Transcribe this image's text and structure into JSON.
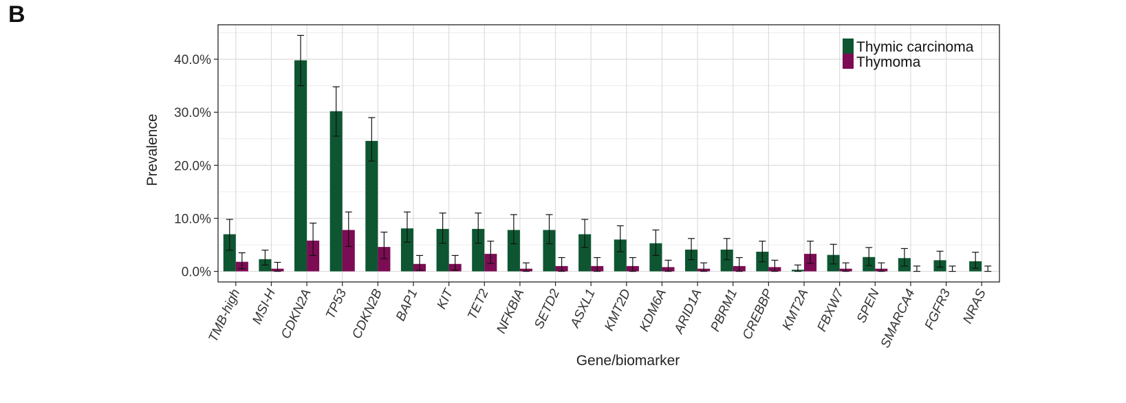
{
  "panel_label": "B",
  "chart_data": {
    "type": "bar",
    "xlabel": "Gene/biomarker",
    "ylabel": "Prevalence",
    "ylim": [
      -0.02,
      0.465
    ],
    "yticks": [
      0.0,
      0.1,
      0.2,
      0.3,
      0.4
    ],
    "ytick_labels": [
      "0.0%",
      "10.0%",
      "20.0%",
      "30.0%",
      "40.0%"
    ],
    "grid": true,
    "legend_position": "top-right",
    "categories": [
      "TMB-high",
      "MSI-H",
      "CDKN2A",
      "TP53",
      "CDKN2B",
      "BAP1",
      "KIT",
      "TET2",
      "NFKBIA",
      "SETD2",
      "ASXL1",
      "KMT2D",
      "KDM6A",
      "ARID1A",
      "PBRM1",
      "CREBBP",
      "KMT2A",
      "FBXW7",
      "SPEN",
      "SMARCA4",
      "FGFR3",
      "NRAS"
    ],
    "series": [
      {
        "name": "Thymic carcinoma",
        "color": "#0e5631",
        "values": [
          0.07,
          0.023,
          0.398,
          0.302,
          0.246,
          0.081,
          0.08,
          0.08,
          0.078,
          0.078,
          0.07,
          0.06,
          0.053,
          0.041,
          0.041,
          0.037,
          0.003,
          0.031,
          0.027,
          0.025,
          0.021,
          0.019
        ],
        "err_low": [
          0.04,
          0.012,
          0.35,
          0.255,
          0.208,
          0.055,
          0.053,
          0.053,
          0.052,
          0.052,
          0.045,
          0.037,
          0.03,
          0.022,
          0.022,
          0.018,
          0.0,
          0.014,
          0.011,
          0.01,
          0.008,
          0.006
        ],
        "err_high": [
          0.098,
          0.04,
          0.445,
          0.348,
          0.29,
          0.112,
          0.11,
          0.11,
          0.107,
          0.107,
          0.098,
          0.086,
          0.078,
          0.062,
          0.062,
          0.057,
          0.012,
          0.051,
          0.045,
          0.043,
          0.038,
          0.036
        ]
      },
      {
        "name": "Thymoma",
        "color": "#7c0c53",
        "values": [
          0.018,
          0.005,
          0.058,
          0.078,
          0.046,
          0.014,
          0.014,
          0.033,
          0.005,
          0.01,
          0.01,
          0.01,
          0.008,
          0.005,
          0.01,
          0.008,
          0.033,
          0.005,
          0.005,
          0.0,
          0.0,
          0.0
        ],
        "err_low": [
          0.005,
          0.0,
          0.03,
          0.047,
          0.024,
          0.002,
          0.002,
          0.015,
          0.0,
          0.0,
          0.0,
          0.0,
          0.0,
          0.0,
          0.0,
          0.0,
          0.015,
          0.0,
          0.0,
          0.0,
          0.0,
          0.0
        ],
        "err_high": [
          0.035,
          0.017,
          0.091,
          0.112,
          0.074,
          0.03,
          0.03,
          0.057,
          0.016,
          0.026,
          0.026,
          0.026,
          0.021,
          0.016,
          0.026,
          0.021,
          0.057,
          0.016,
          0.016,
          0.01,
          0.01,
          0.01
        ]
      }
    ]
  }
}
